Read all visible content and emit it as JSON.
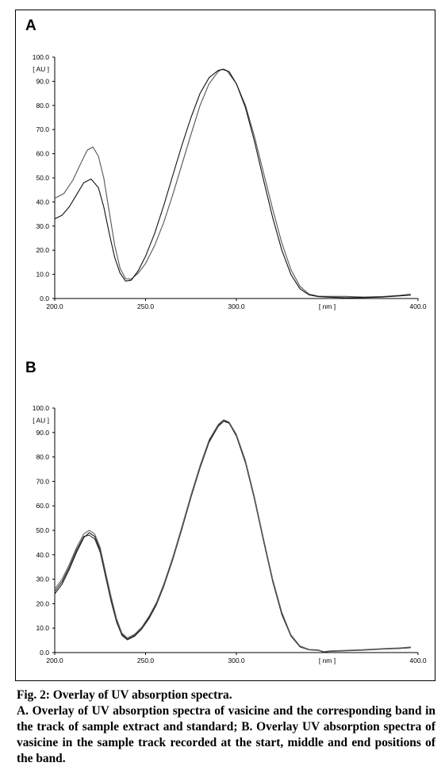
{
  "chart_data": [
    {
      "type": "line",
      "panel": "A",
      "ylabel": "[ AU ]",
      "xlabel": "[ nm ]",
      "xlim": [
        200,
        400
      ],
      "ylim": [
        0,
        100
      ],
      "x_ticks": [
        "200.0",
        "250.0",
        "300.0",
        "400.0"
      ],
      "y_ticks": [
        "0.0",
        "10.0",
        "20.0",
        "30.0",
        "40.0",
        "50.0",
        "60.0",
        "70.0",
        "80.0",
        "90.0",
        "100.0"
      ],
      "grid": false,
      "legend": "none",
      "series": [
        {
          "color": "#555555",
          "points": [
            [
              200,
              41.5
            ],
            [
              205,
              43.5
            ],
            [
              210,
              49
            ],
            [
              215,
              57
            ],
            [
              218,
              61.5
            ],
            [
              221,
              62.8
            ],
            [
              224,
              59
            ],
            [
              227,
              50
            ],
            [
              230,
              36
            ],
            [
              233,
              22
            ],
            [
              236,
              12.5
            ],
            [
              239,
              8.2
            ],
            [
              242,
              8
            ],
            [
              246,
              10.5
            ],
            [
              250,
              14.5
            ],
            [
              255,
              22
            ],
            [
              260,
              31.5
            ],
            [
              265,
              43
            ],
            [
              270,
              55.5
            ],
            [
              275,
              68
            ],
            [
              280,
              80
            ],
            [
              285,
              89
            ],
            [
              290,
              94
            ],
            [
              292,
              95
            ],
            [
              295,
              94.2
            ],
            [
              300,
              89
            ],
            [
              305,
              80
            ],
            [
              310,
              67
            ],
            [
              315,
              52
            ],
            [
              320,
              37
            ],
            [
              325,
              23
            ],
            [
              330,
              12
            ],
            [
              335,
              5
            ],
            [
              340,
              1.8
            ],
            [
              345,
              1
            ],
            [
              350,
              0.9
            ],
            [
              360,
              0.9
            ],
            [
              370,
              0.6
            ],
            [
              380,
              0.8
            ],
            [
              390,
              1.3
            ],
            [
              396,
              1.8
            ]
          ]
        },
        {
          "color": "#111111",
          "points": [
            [
              200,
              33
            ],
            [
              204,
              34.5
            ],
            [
              208,
              38
            ],
            [
              212,
              43
            ],
            [
              216,
              48
            ],
            [
              220,
              49.5
            ],
            [
              224,
              46
            ],
            [
              227,
              38
            ],
            [
              230,
              27
            ],
            [
              233,
              17
            ],
            [
              236,
              10.5
            ],
            [
              239,
              7.2
            ],
            [
              242,
              7.5
            ],
            [
              246,
              11.5
            ],
            [
              250,
              17.5
            ],
            [
              255,
              27
            ],
            [
              260,
              38.5
            ],
            [
              265,
              51
            ],
            [
              270,
              63.5
            ],
            [
              275,
              75
            ],
            [
              280,
              85
            ],
            [
              285,
              91.5
            ],
            [
              290,
              94.5
            ],
            [
              293,
              95
            ],
            [
              296,
              94
            ],
            [
              300,
              89
            ],
            [
              305,
              79
            ],
            [
              310,
              65
            ],
            [
              315,
              49
            ],
            [
              320,
              33.5
            ],
            [
              325,
              20
            ],
            [
              330,
              10
            ],
            [
              335,
              4
            ],
            [
              340,
              1.5
            ],
            [
              345,
              0.8
            ],
            [
              350,
              0.6
            ],
            [
              360,
              0.3
            ],
            [
              370,
              0.4
            ],
            [
              380,
              0.6
            ],
            [
              390,
              1.1
            ],
            [
              396,
              1.4
            ]
          ]
        }
      ]
    },
    {
      "type": "line",
      "panel": "B",
      "ylabel": "[ AU ]",
      "xlabel": "[ nm ]",
      "xlim": [
        200,
        400
      ],
      "ylim": [
        0,
        100
      ],
      "x_ticks": [
        "200.0",
        "250.0",
        "300.0",
        "400.0"
      ],
      "y_ticks": [
        "0.0",
        "10.0",
        "20.0",
        "30.0",
        "40.0",
        "50.0",
        "60.0",
        "70.0",
        "80.0",
        "90.0",
        "100.0"
      ],
      "grid": false,
      "legend": "none",
      "series": [
        {
          "color": "#111111",
          "points": [
            [
              200,
              24
            ],
            [
              204,
              28
            ],
            [
              208,
              34
            ],
            [
              212,
              41
            ],
            [
              216,
              47
            ],
            [
              219,
              49
            ],
            [
              222,
              47.5
            ],
            [
              225,
              42
            ],
            [
              228,
              32
            ],
            [
              231,
              22
            ],
            [
              234,
              13
            ],
            [
              237,
              7.5
            ],
            [
              240,
              5.5
            ],
            [
              244,
              7
            ],
            [
              248,
              10
            ],
            [
              252,
              14.5
            ],
            [
              256,
              20
            ],
            [
              260,
              27.5
            ],
            [
              265,
              38.5
            ],
            [
              270,
              51
            ],
            [
              275,
              64
            ],
            [
              280,
              76
            ],
            [
              285,
              86.5
            ],
            [
              290,
              93
            ],
            [
              293,
              95
            ],
            [
              296,
              94
            ],
            [
              300,
              89
            ],
            [
              305,
              78
            ],
            [
              310,
              63
            ],
            [
              315,
              46
            ],
            [
              320,
              29.5
            ],
            [
              325,
              16
            ],
            [
              330,
              7
            ],
            [
              335,
              2.5
            ],
            [
              340,
              1.2
            ],
            [
              345,
              1
            ],
            [
              348,
              0.2
            ],
            [
              352,
              0.6
            ],
            [
              360,
              0.8
            ],
            [
              370,
              1.1
            ],
            [
              380,
              1.5
            ],
            [
              390,
              1.8
            ],
            [
              396,
              2.2
            ]
          ]
        },
        {
          "color": "#333333",
          "points": [
            [
              200,
              25
            ],
            [
              204,
              29
            ],
            [
              208,
              35
            ],
            [
              212,
              42
            ],
            [
              216,
              47.5
            ],
            [
              219,
              48
            ],
            [
              222,
              46.5
            ],
            [
              225,
              41
            ],
            [
              228,
              31
            ],
            [
              231,
              21
            ],
            [
              234,
              12.5
            ],
            [
              237,
              7
            ],
            [
              240,
              5.2
            ],
            [
              244,
              6.7
            ],
            [
              248,
              9.7
            ],
            [
              252,
              14
            ],
            [
              256,
              19.5
            ],
            [
              260,
              27
            ],
            [
              265,
              38
            ],
            [
              270,
              50.5
            ],
            [
              275,
              63.5
            ],
            [
              280,
              75.5
            ],
            [
              285,
              86
            ],
            [
              290,
              92.5
            ],
            [
              293,
              94.6
            ],
            [
              296,
              93.8
            ],
            [
              300,
              88.5
            ],
            [
              305,
              77.5
            ],
            [
              310,
              62.5
            ],
            [
              315,
              45.5
            ],
            [
              320,
              29
            ],
            [
              325,
              15.5
            ],
            [
              330,
              6.8
            ],
            [
              335,
              2.3
            ],
            [
              340,
              1.1
            ],
            [
              345,
              0.9
            ],
            [
              348,
              0.3
            ],
            [
              352,
              0.5
            ],
            [
              360,
              0.7
            ],
            [
              370,
              1
            ],
            [
              380,
              1.4
            ],
            [
              390,
              1.7
            ],
            [
              396,
              2
            ]
          ]
        },
        {
          "color": "#666666",
          "points": [
            [
              200,
              26
            ],
            [
              204,
              30
            ],
            [
              208,
              36
            ],
            [
              212,
              43
            ],
            [
              216,
              48.5
            ],
            [
              219,
              50
            ],
            [
              222,
              48.5
            ],
            [
              225,
              43
            ],
            [
              228,
              33
            ],
            [
              231,
              23
            ],
            [
              234,
              14
            ],
            [
              237,
              8
            ],
            [
              240,
              6
            ],
            [
              244,
              7.5
            ],
            [
              248,
              10.5
            ],
            [
              252,
              15
            ],
            [
              256,
              20.5
            ],
            [
              260,
              28
            ],
            [
              265,
              39
            ],
            [
              270,
              51.5
            ],
            [
              275,
              64.5
            ],
            [
              280,
              76.5
            ],
            [
              285,
              87
            ],
            [
              290,
              93.3
            ],
            [
              293,
              95.2
            ],
            [
              296,
              94.3
            ],
            [
              300,
              89.3
            ],
            [
              305,
              78.5
            ],
            [
              310,
              63.5
            ],
            [
              315,
              46.5
            ],
            [
              320,
              30
            ],
            [
              325,
              16.5
            ],
            [
              330,
              7.3
            ],
            [
              335,
              2.7
            ],
            [
              340,
              1.3
            ],
            [
              345,
              1.1
            ],
            [
              348,
              0.4
            ],
            [
              352,
              0.7
            ],
            [
              360,
              0.9
            ],
            [
              370,
              1.2
            ],
            [
              380,
              1.6
            ],
            [
              390,
              1.9
            ],
            [
              396,
              2.3
            ]
          ]
        }
      ]
    }
  ],
  "caption": {
    "title": "Fig. 2: Overlay of UV absorption spectra.",
    "description": "A. Overlay of UV absorption spectra of vasicine and the corresponding band in the track of sample extract and standard; B. Overlay UV absorption spectra of vasicine in the sample track recorded at the start, middle and end positions of the band."
  }
}
